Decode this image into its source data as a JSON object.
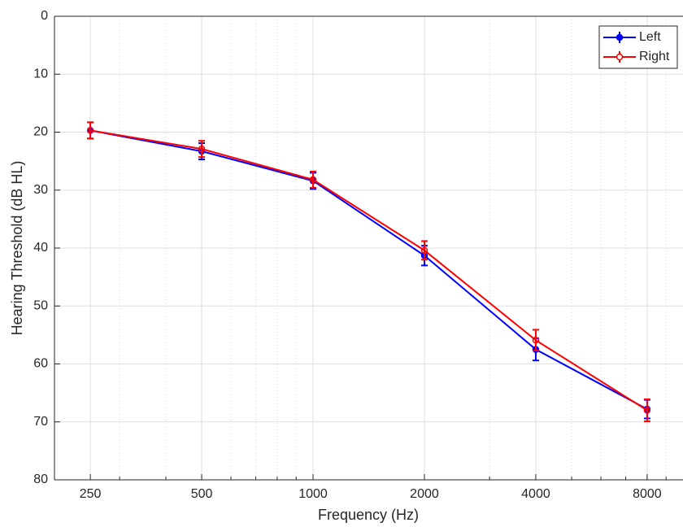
{
  "chart_data": {
    "type": "line",
    "xlabel": "Frequency (Hz)",
    "ylabel": "Hearing Threshold (dB HL)",
    "x": [
      250,
      500,
      1000,
      2000,
      4000,
      8000
    ],
    "xlim": [
      200,
      10000
    ],
    "xticks": [
      250,
      500,
      1000,
      2000,
      4000,
      8000
    ],
    "xscale": "log",
    "ylim": [
      0,
      80
    ],
    "yticks": [
      0,
      10,
      20,
      30,
      40,
      50,
      60,
      70,
      80
    ],
    "y_reversed": true,
    "grid": true,
    "minor_grid": true,
    "legend": "upper right",
    "series": [
      {
        "name": "Left",
        "color": "#0000ff",
        "marker_filled": true,
        "values": [
          19.7,
          23.3,
          28.4,
          41.3,
          57.5,
          67.8
        ],
        "errors": [
          1.4,
          1.4,
          1.4,
          1.7,
          1.9,
          1.6
        ]
      },
      {
        "name": "Right",
        "color": "#ff0000",
        "marker_filled": false,
        "values": [
          19.7,
          22.9,
          28.2,
          40.4,
          55.9,
          68.0
        ],
        "errors": [
          1.4,
          1.4,
          1.4,
          1.6,
          1.8,
          1.9
        ]
      }
    ]
  }
}
